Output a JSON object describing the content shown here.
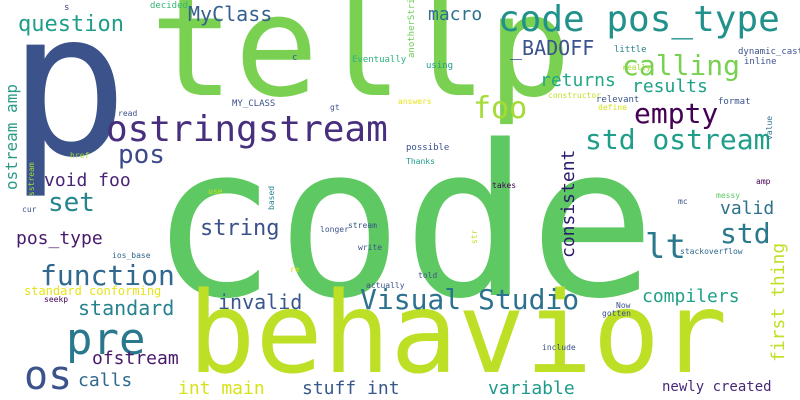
{
  "words": [
    {
      "key": "code",
      "text": "code",
      "color": "#5ec962"
    },
    {
      "key": "p",
      "text": "p",
      "color": "#3b528b"
    },
    {
      "key": "tellp",
      "text": "tellp",
      "color": "#7ad151"
    },
    {
      "key": "behavior",
      "text": "behavior",
      "color": "#bddf26"
    },
    {
      "key": "code_pos_type",
      "text": "code pos_type",
      "color": "#21918c"
    },
    {
      "key": "ostringstream",
      "text": "ostringstream",
      "color": "#472f7d"
    },
    {
      "key": "pre",
      "text": "pre",
      "color": "#2a788e"
    },
    {
      "key": "os",
      "text": "os",
      "color": "#3b528b"
    },
    {
      "key": "Visual_Studio",
      "text": "Visual Studio",
      "color": "#2c728e"
    },
    {
      "key": "function",
      "text": "function",
      "color": "#31688e"
    },
    {
      "key": "std_ostream",
      "text": "std ostream",
      "color": "#1f9e89"
    },
    {
      "key": "empty",
      "text": "empty",
      "color": "#440154"
    },
    {
      "key": "calling",
      "text": "calling",
      "color": "#7ad151"
    },
    {
      "key": "lt",
      "text": "lt",
      "color": "#2a788e"
    },
    {
      "key": "foo",
      "text": "foo",
      "color": "#a5db36"
    },
    {
      "key": "pos",
      "text": "pos",
      "color": "#3e4989"
    },
    {
      "key": "set",
      "text": "set",
      "color": "#25848e"
    },
    {
      "key": "MyClass",
      "text": "MyClass",
      "color": "#355f8d"
    },
    {
      "key": "question",
      "text": "question",
      "color": "#1f9e89"
    },
    {
      "key": "macro",
      "text": "macro",
      "color": "#2d708e"
    },
    {
      "key": "BADOFF",
      "text": "_BADOFF",
      "color": "#3b528b"
    },
    {
      "key": "returns",
      "text": "returns",
      "color": "#22a884"
    },
    {
      "key": "results",
      "text": "results",
      "color": "#1fa187"
    },
    {
      "key": "string",
      "text": "string",
      "color": "#3b528b"
    },
    {
      "key": "std",
      "text": "std",
      "color": "#2a788e"
    },
    {
      "key": "valid",
      "text": "valid",
      "color": "#2c728e"
    },
    {
      "key": "void_foo",
      "text": "void foo",
      "color": "#482475"
    },
    {
      "key": "invalid",
      "text": "invalid",
      "color": "#38588c"
    },
    {
      "key": "standard",
      "text": "standard",
      "color": "#26828e"
    },
    {
      "key": "compilers",
      "text": "compilers",
      "color": "#1fa187"
    },
    {
      "key": "pos_type",
      "text": "pos_type",
      "color": "#481a6c"
    },
    {
      "key": "ofstream",
      "text": "ofstream",
      "color": "#48186a"
    },
    {
      "key": "calls",
      "text": "calls",
      "color": "#31688e"
    },
    {
      "key": "int_main",
      "text": "int main",
      "color": "#d8e219"
    },
    {
      "key": "stuff_int",
      "text": "stuff int",
      "color": "#38588c"
    },
    {
      "key": "variable",
      "text": "variable",
      "color": "#1e9b8a"
    },
    {
      "key": "newly_created",
      "text": "newly created",
      "color": "#482878"
    },
    {
      "key": "standard_conforming",
      "text": "standard conforming",
      "color": "#e5e419"
    },
    {
      "key": "consistent",
      "text": "consistent",
      "color": "#2b1b6a"
    },
    {
      "key": "first_thing",
      "text": "first thing",
      "color": "#c2df23"
    },
    {
      "key": "ostream_amp",
      "text": "ostream amp",
      "color": "#2a9a86"
    },
    {
      "key": "anotherString",
      "text": "anotherString",
      "color": "#3e4989"
    },
    {
      "key": "value",
      "text": "value",
      "color": "#35b779"
    },
    {
      "key": "based",
      "text": "based",
      "color": "#38588c"
    },
    {
      "key": "sstream",
      "text": "sstream",
      "color": "#2db27d"
    },
    {
      "key": "str",
      "text": "str",
      "color": "#6ece58"
    },
    {
      "key": "s",
      "text": "s",
      "color": "#1f9e89"
    },
    {
      "key": "decided",
      "text": "decided",
      "color": "#26828e"
    },
    {
      "key": "c",
      "text": "c",
      "color": "#3b528b"
    },
    {
      "key": "Eventually",
      "text": "Eventually",
      "color": "#a8db34"
    },
    {
      "key": "using",
      "text": "using",
      "color": "#3b528b"
    },
    {
      "key": "little",
      "text": "little",
      "color": "#bddf26"
    },
    {
      "key": "dynamic_cast",
      "text": "dynamic_cast",
      "color": "#2c728e"
    },
    {
      "key": "really",
      "text": "really",
      "color": "#d2e21b"
    },
    {
      "key": "inline",
      "text": "inline",
      "color": "#3b528b"
    },
    {
      "key": "constructor",
      "text": "constructor",
      "color": "#3b528b"
    },
    {
      "key": "define",
      "text": "define",
      "color": "#3b528b"
    },
    {
      "key": "format",
      "text": "format",
      "color": "#3b528b"
    },
    {
      "key": "relevant",
      "text": "relevant",
      "color": "#3b528b"
    },
    {
      "key": "read",
      "text": "read",
      "color": "#e8e419"
    },
    {
      "key": "MY_CLASS",
      "text": "MY_CLASS",
      "color": "#3b528b"
    },
    {
      "key": "gt",
      "text": "gt",
      "color": "#1f9e89"
    },
    {
      "key": "answers",
      "text": "answers",
      "color": "#a0da39"
    },
    {
      "key": "possible",
      "text": "possible",
      "color": "#c8e020"
    },
    {
      "key": "Thanks",
      "text": "Thanks",
      "color": "#26828e"
    },
    {
      "key": "href",
      "text": "href",
      "color": "#a0da39"
    },
    {
      "key": "use",
      "text": "use",
      "color": "#3b528b"
    },
    {
      "key": "cur",
      "text": "cur",
      "color": "#440154"
    },
    {
      "key": "takes",
      "text": "takes",
      "color": "#5ec962"
    },
    {
      "key": "messy",
      "text": "messy",
      "color": "#440154"
    },
    {
      "key": "amp",
      "text": "amp",
      "color": "#3b528b"
    },
    {
      "key": "mc",
      "text": "mc",
      "color": "#3b528b"
    },
    {
      "key": "longer",
      "text": "longer",
      "color": "#3b528b"
    },
    {
      "key": "stream",
      "text": "stream",
      "color": "#c2df23"
    },
    {
      "key": "write",
      "text": "write",
      "color": "#3b528b"
    },
    {
      "key": "ios_base",
      "text": "ios_base",
      "color": "#31688e"
    },
    {
      "key": "re",
      "text": "re",
      "color": "#d8e219"
    },
    {
      "key": "stackoverflow",
      "text": "stackoverflow",
      "color": "#31688e"
    },
    {
      "key": "told",
      "text": "told",
      "color": "#3b528b"
    },
    {
      "key": "actually",
      "text": "actually",
      "color": "#3b528b"
    },
    {
      "key": "seekp",
      "text": "seekp",
      "color": "#440154"
    },
    {
      "key": "Now",
      "text": "Now",
      "color": "#3b528b"
    },
    {
      "key": "gotten",
      "text": "gotten",
      "color": "#3b528b"
    },
    {
      "key": "include",
      "text": "include",
      "color": "#3b528b"
    }
  ]
}
